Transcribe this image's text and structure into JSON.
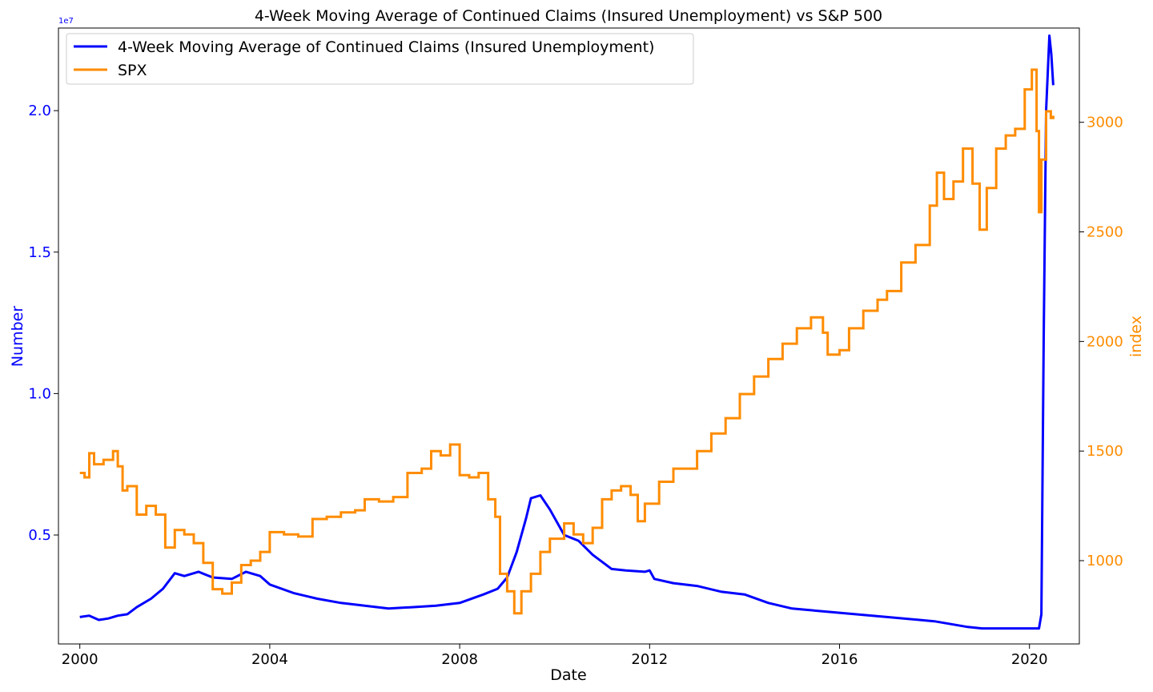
{
  "chart_data": {
    "type": "line",
    "title": "4-Week Moving Average of Continued Claims (Insured Unemployment) vs S&P 500",
    "xlabel": "Date",
    "ylabel_left": "Number",
    "ylabel_right": "index",
    "left_axis_scale_note": "1e7",
    "xlim": [
      1999.55,
      2021.05
    ],
    "ylim_left": [
      1150000,
      22920000
    ],
    "ylim_right": [
      620,
      3430
    ],
    "x_ticks": [
      2000,
      2004,
      2008,
      2012,
      2016,
      2020
    ],
    "x_tick_labels": [
      "2000",
      "2004",
      "2008",
      "2012",
      "2016",
      "2020"
    ],
    "y_left_ticks": [
      5000000,
      10000000,
      15000000,
      20000000
    ],
    "y_left_tick_labels": [
      "0.5",
      "1.0",
      "1.5",
      "2.0"
    ],
    "y_right_ticks": [
      1000,
      1500,
      2000,
      2500,
      3000
    ],
    "y_right_tick_labels": [
      "1000",
      "1500",
      "2000",
      "2500",
      "3000"
    ],
    "grid": false,
    "legend_position": "top-left",
    "colors": {
      "claims": "#0000ff",
      "spx": "#ff8c00"
    },
    "series": [
      {
        "name": "4-Week Moving Average of Continued Claims (Insured Unemployment)",
        "axis": "left",
        "x": [
          2000.0,
          2000.2,
          2000.4,
          2000.6,
          2000.8,
          2001.0,
          2001.2,
          2001.5,
          2001.75,
          2002.0,
          2002.2,
          2002.5,
          2002.8,
          2003.2,
          2003.5,
          2003.8,
          2004.0,
          2004.5,
          2005.0,
          2005.5,
          2006.0,
          2006.5,
          2007.0,
          2007.5,
          2008.0,
          2008.5,
          2008.8,
          2009.0,
          2009.2,
          2009.4,
          2009.5,
          2009.7,
          2009.9,
          2010.2,
          2010.5,
          2010.8,
          2011.2,
          2011.5,
          2011.9,
          2012.0,
          2012.1,
          2012.5,
          2013.0,
          2013.5,
          2014.0,
          2014.5,
          2015.0,
          2016.0,
          2017.0,
          2018.0,
          2018.7,
          2019.0,
          2019.5,
          2020.0,
          2020.2,
          2020.25,
          2020.3,
          2020.35,
          2020.42,
          2020.46,
          2020.5
        ],
        "y": [
          2100000,
          2150000,
          2000000,
          2050000,
          2150000,
          2200000,
          2450000,
          2750000,
          3100000,
          3650000,
          3550000,
          3700000,
          3500000,
          3450000,
          3700000,
          3550000,
          3250000,
          2950000,
          2750000,
          2600000,
          2500000,
          2400000,
          2450000,
          2500000,
          2600000,
          2900000,
          3100000,
          3500000,
          4400000,
          5600000,
          6300000,
          6400000,
          5900000,
          5000000,
          4800000,
          4300000,
          3800000,
          3750000,
          3700000,
          3750000,
          3450000,
          3300000,
          3200000,
          3000000,
          2900000,
          2600000,
          2400000,
          2250000,
          2100000,
          1950000,
          1750000,
          1700000,
          1700000,
          1700000,
          1700000,
          2200000,
          12000000,
          20000000,
          22650000,
          22000000,
          20900000
        ]
      },
      {
        "name": "SPX",
        "axis": "right",
        "x": [
          2000.0,
          2000.1,
          2000.2,
          2000.3,
          2000.5,
          2000.7,
          2000.8,
          2000.9,
          2001.0,
          2001.2,
          2001.4,
          2001.6,
          2001.8,
          2002.0,
          2002.2,
          2002.4,
          2002.6,
          2002.8,
          2003.0,
          2003.2,
          2003.4,
          2003.6,
          2003.8,
          2004.0,
          2004.3,
          2004.6,
          2004.9,
          2005.2,
          2005.5,
          2005.8,
          2006.0,
          2006.3,
          2006.6,
          2006.9,
          2007.2,
          2007.4,
          2007.6,
          2007.8,
          2008.0,
          2008.2,
          2008.4,
          2008.6,
          2008.75,
          2008.85,
          2009.0,
          2009.15,
          2009.3,
          2009.5,
          2009.7,
          2009.9,
          2010.2,
          2010.4,
          2010.6,
          2010.8,
          2011.0,
          2011.2,
          2011.4,
          2011.6,
          2011.75,
          2011.9,
          2012.2,
          2012.5,
          2012.8,
          2013.0,
          2013.3,
          2013.6,
          2013.9,
          2014.2,
          2014.5,
          2014.8,
          2015.1,
          2015.4,
          2015.65,
          2015.75,
          2016.0,
          2016.2,
          2016.5,
          2016.8,
          2017.0,
          2017.3,
          2017.6,
          2017.9,
          2018.05,
          2018.2,
          2018.4,
          2018.6,
          2018.8,
          2018.95,
          2019.1,
          2019.3,
          2019.5,
          2019.7,
          2019.9,
          2020.05,
          2020.15,
          2020.2,
          2020.25,
          2020.35,
          2020.45,
          2020.5
        ],
        "y": [
          1400,
          1380,
          1490,
          1440,
          1460,
          1500,
          1430,
          1320,
          1340,
          1210,
          1250,
          1210,
          1060,
          1140,
          1120,
          1080,
          990,
          870,
          850,
          900,
          980,
          1000,
          1040,
          1130,
          1120,
          1110,
          1190,
          1200,
          1220,
          1230,
          1280,
          1270,
          1290,
          1400,
          1420,
          1500,
          1480,
          1530,
          1390,
          1380,
          1400,
          1280,
          1200,
          940,
          860,
          760,
          860,
          940,
          1040,
          1100,
          1170,
          1120,
          1080,
          1150,
          1280,
          1320,
          1340,
          1300,
          1180,
          1260,
          1360,
          1420,
          1420,
          1500,
          1580,
          1650,
          1760,
          1840,
          1920,
          1990,
          2060,
          2110,
          2040,
          1940,
          1960,
          2060,
          2140,
          2190,
          2230,
          2360,
          2440,
          2620,
          2770,
          2650,
          2730,
          2880,
          2720,
          2510,
          2700,
          2880,
          2940,
          2970,
          3150,
          3240,
          2960,
          2590,
          2830,
          3050,
          3020,
          3030
        ]
      }
    ]
  }
}
